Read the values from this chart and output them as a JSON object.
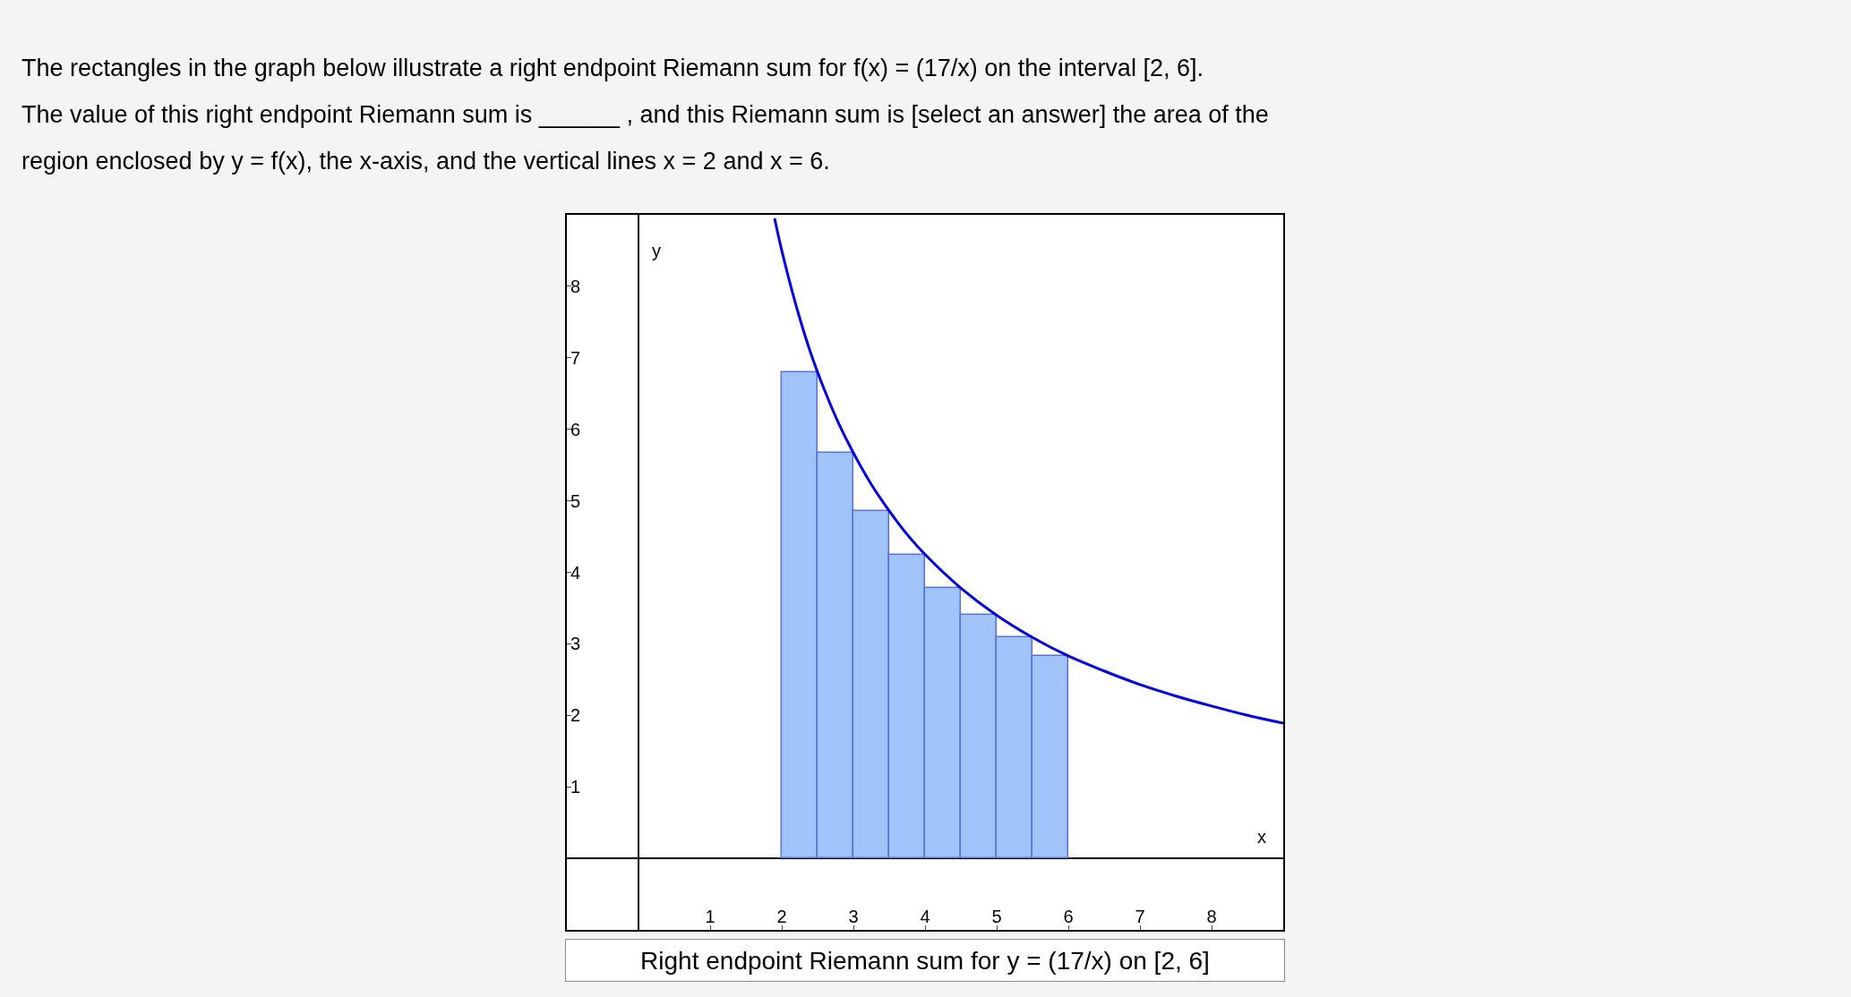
{
  "chart_data": {
    "type": "bar",
    "title": "The rectangles in the graph below illustrate a right endpoint Riemann sum for f(x) = (17/x) on the interval [2, 6].\nThe value of this right endpoint Riemann sum is ______ , and this Riemann sum is [select an answer] the area of the\nregion enclosed by y = f(x), the x-axis, and the vertical lines x = 2 and x = 6.",
    "xlabel": "x",
    "ylabel": "y",
    "annotations": [
      "Right endpoint Riemann sum for y = (17/x) on [2, 6]"
    ],
    "series": [
      {
        "color": "#a0c4fa",
        "x": [
          2.25,
          2.75,
          3.25,
          3.75,
          4.25,
          4.75,
          5.25,
          5.75
        ],
        "values": [
          6.8,
          5.67,
          4.86,
          4.25,
          3.78,
          3.4,
          3.09,
          2.83
        ]
      },
      {
        "type": "line",
        "color": "#0000e0",
        "x": [
          1.9,
          2,
          2.2,
          2.4,
          2.6,
          2.8,
          3,
          3.25,
          3.5,
          3.75,
          4,
          4.5,
          5,
          5.5,
          6,
          6.5,
          7,
          7.5,
          8,
          8.5,
          9
        ],
        "values": [
          8.95,
          8.5,
          7.73,
          7.08,
          6.54,
          6.07,
          5.67,
          5.23,
          4.86,
          4.53,
          4.25,
          3.78,
          3.4,
          3.09,
          2.83,
          2.62,
          2.43,
          2.27,
          2.13,
          2.0,
          1.89
        ]
      }
    ],
    "xlim": [
      -1,
      9
    ],
    "ylim": [
      -1,
      9
    ],
    "xticks": [
      1,
      2,
      3,
      4,
      5,
      6,
      7,
      8
    ],
    "yticks": [
      1,
      2,
      3,
      4,
      5,
      6,
      7,
      8
    ],
    "marker": "none",
    "line_style": "solid"
  }
}
